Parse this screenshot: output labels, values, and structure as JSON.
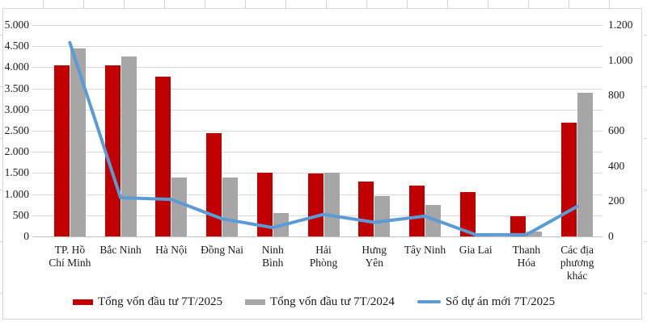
{
  "chart_data": {
    "type": "bar",
    "subtype": "grouped-bars-with-line",
    "title": "",
    "categories": [
      "TP. Hồ Chí Minh",
      "Bắc Ninh",
      "Hà Nội",
      "Đồng Nai",
      "Ninh Bình",
      "Hải Phòng",
      "Hưng Yên",
      "Tây Ninh",
      "Gia Lai",
      "Thanh Hóa",
      "Các địa phương khác"
    ],
    "category_label_lines": [
      [
        "TP. Hồ",
        "Chí Minh"
      ],
      [
        "Bắc Ninh"
      ],
      [
        "Hà Nội"
      ],
      [
        "Đồng Nai"
      ],
      [
        "Ninh",
        "Bình"
      ],
      [
        "Hải",
        "Phòng"
      ],
      [
        "Hưng",
        "Yên"
      ],
      [
        "Tây Ninh"
      ],
      [
        "Gia Lai"
      ],
      [
        "Thanh",
        "Hóa"
      ],
      [
        "Các địa",
        "phương",
        "khác"
      ]
    ],
    "series": [
      {
        "name": "Tổng vốn đầu tư 7T/2025",
        "type": "bar",
        "axis": "left",
        "color": "#C00000",
        "values": [
          4050,
          4050,
          3780,
          2450,
          1500,
          1480,
          1300,
          1200,
          1050,
          480,
          2700
        ]
      },
      {
        "name": "Tổng vốn đầu tư  7T/2024",
        "type": "bar",
        "axis": "left",
        "color": "#A6A6A6",
        "values": [
          4450,
          4250,
          1400,
          1400,
          550,
          1500,
          950,
          750,
          30,
          110,
          3400
        ]
      },
      {
        "name": "Số dự án mới 7T/2025",
        "type": "line",
        "axis": "right",
        "color": "#5B9BD5",
        "values": [
          1100,
          220,
          210,
          100,
          50,
          125,
          80,
          115,
          10,
          10,
          170
        ]
      }
    ],
    "left_axis": {
      "min": 0,
      "max": 5000,
      "step": 500,
      "tick_labels": [
        "5.000",
        "4.500",
        "4.000",
        "3.500",
        "3.000",
        "2.500",
        "2.000",
        "1.500",
        "1.000",
        "500",
        "0"
      ]
    },
    "right_axis": {
      "min": 0,
      "max": 1200,
      "step": 200,
      "tick_labels": [
        "1.200",
        "1.000",
        "800",
        "600",
        "400",
        "200",
        "0"
      ]
    },
    "grid": true,
    "legend_position": "bottom"
  },
  "colors": {
    "gridline": "#D9D9D9",
    "axis_line": "#BFBFBF",
    "chart_border": "#D6D6D6",
    "spreadsheet_gridline": "#D4D4D4",
    "text": "#1A1A1A"
  }
}
